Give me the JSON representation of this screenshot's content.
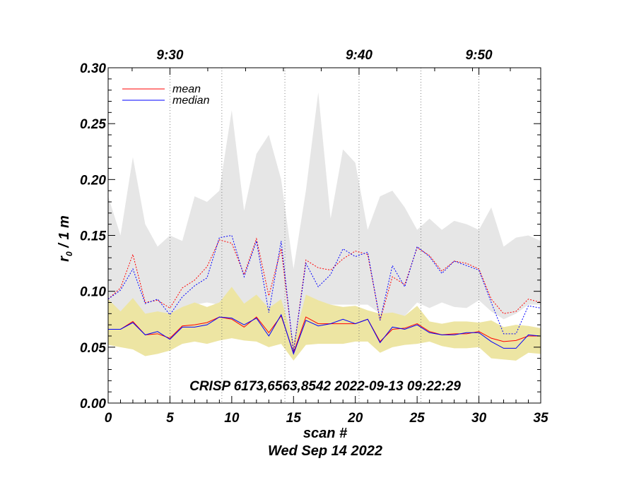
{
  "chart_data": {
    "type": "line",
    "xlabel": "scan #",
    "ylabel_main": "r",
    "ylabel_sub": "0",
    "ylabel_rest": " / 1 m",
    "date": "Wed Sep 14 2022",
    "caption": "CRISP 6173,6563,8542 2022-09-13 09:22:29",
    "xlim": [
      0,
      35
    ],
    "ylim": [
      0,
      0.3
    ],
    "x_ticks": [
      0,
      5,
      10,
      15,
      20,
      25,
      30,
      35
    ],
    "x_tick_labels": [
      "0",
      "5",
      "10",
      "15",
      "20",
      "25",
      "30",
      "35"
    ],
    "y_ticks": [
      0,
      0.05,
      0.1,
      0.15,
      0.2,
      0.25,
      0.3
    ],
    "y_tick_labels": [
      "0.00",
      "0.05",
      "0.10",
      "0.15",
      "0.20",
      "0.25",
      "0.30"
    ],
    "time_axis": {
      "ticks": [
        {
          "scan": 5,
          "label": "9:30"
        },
        {
          "scan": 20.3,
          "label": "9:40"
        },
        {
          "scan": 30,
          "label": "9:50"
        }
      ],
      "extra_gridlines": [
        9.2,
        14.3,
        25.3
      ]
    },
    "legend": {
      "placement": "top-left",
      "entries": [
        {
          "name": "mean",
          "color": "#ff0000"
        },
        {
          "name": "median",
          "color": "#0000ff"
        }
      ]
    },
    "x": [
      0,
      1,
      2,
      3,
      4,
      5,
      6,
      7,
      8,
      9,
      10,
      11,
      12,
      13,
      14,
      15,
      16,
      17,
      18,
      19,
      20,
      21,
      22,
      23,
      24,
      25,
      26,
      27,
      28,
      29,
      30,
      31,
      32,
      33,
      34,
      35
    ],
    "series": [
      {
        "name": "mean",
        "style": "solid",
        "color": "#ff0000",
        "values": [
          0.066,
          0.066,
          0.073,
          0.061,
          0.062,
          0.058,
          0.069,
          0.07,
          0.072,
          0.077,
          0.075,
          0.068,
          0.077,
          0.063,
          0.078,
          0.045,
          0.077,
          0.071,
          0.071,
          0.071,
          0.071,
          0.075,
          0.055,
          0.066,
          0.067,
          0.071,
          0.064,
          0.061,
          0.062,
          0.062,
          0.064,
          0.058,
          0.055,
          0.056,
          0.06,
          0.06
        ]
      },
      {
        "name": "median",
        "style": "solid",
        "color": "#0000ff",
        "values": [
          0.066,
          0.066,
          0.072,
          0.061,
          0.064,
          0.057,
          0.068,
          0.068,
          0.07,
          0.077,
          0.076,
          0.07,
          0.076,
          0.06,
          0.079,
          0.044,
          0.074,
          0.069,
          0.071,
          0.075,
          0.071,
          0.075,
          0.054,
          0.068,
          0.066,
          0.07,
          0.063,
          0.061,
          0.061,
          0.063,
          0.063,
          0.055,
          0.049,
          0.049,
          0.061,
          0.06
        ]
      },
      {
        "style": "dotted",
        "color": "#ff0000",
        "values": [
          0.093,
          0.103,
          0.133,
          0.09,
          0.092,
          0.085,
          0.103,
          0.11,
          0.122,
          0.146,
          0.143,
          0.115,
          0.147,
          0.096,
          0.138,
          0.046,
          0.128,
          0.121,
          0.119,
          0.129,
          0.136,
          0.133,
          0.074,
          0.113,
          0.106,
          0.139,
          0.132,
          0.118,
          0.127,
          0.125,
          0.12,
          0.093,
          0.08,
          0.082,
          0.093,
          0.09
        ]
      },
      {
        "style": "dotted",
        "color": "#0000ff",
        "values": [
          0.093,
          0.101,
          0.12,
          0.089,
          0.093,
          0.079,
          0.095,
          0.105,
          0.112,
          0.148,
          0.15,
          0.113,
          0.145,
          0.081,
          0.145,
          0.046,
          0.125,
          0.104,
          0.115,
          0.138,
          0.131,
          0.135,
          0.074,
          0.123,
          0.104,
          0.14,
          0.131,
          0.116,
          0.127,
          0.123,
          0.119,
          0.09,
          0.062,
          0.062,
          0.087,
          0.085
        ]
      }
    ],
    "bands": [
      {
        "color": "#e6e6e6",
        "upper": [
          0.185,
          0.15,
          0.22,
          0.16,
          0.14,
          0.15,
          0.145,
          0.185,
          0.18,
          0.19,
          0.262,
          0.172,
          0.223,
          0.24,
          0.2,
          0.12,
          0.19,
          0.278,
          0.165,
          0.227,
          0.215,
          0.155,
          0.185,
          0.19,
          0.175,
          0.155,
          0.165,
          0.155,
          0.163,
          0.16,
          0.155,
          0.175,
          0.14,
          0.148,
          0.15,
          0.145
        ],
        "lower": [
          0.085,
          0.078,
          0.085,
          0.078,
          0.08,
          0.073,
          0.085,
          0.088,
          0.09,
          0.088,
          0.09,
          0.088,
          0.092,
          0.085,
          0.088,
          0.045,
          0.088,
          0.088,
          0.088,
          0.088,
          0.088,
          0.088,
          0.08,
          0.08,
          0.078,
          0.09,
          0.085,
          0.09,
          0.086,
          0.085,
          0.092,
          0.082,
          0.075,
          0.08,
          0.088,
          0.088
        ]
      },
      {
        "color": "#ede5a3",
        "upper": [
          0.093,
          0.082,
          0.094,
          0.08,
          0.082,
          0.08,
          0.086,
          0.09,
          0.086,
          0.09,
          0.104,
          0.089,
          0.097,
          0.085,
          0.093,
          0.055,
          0.097,
          0.092,
          0.088,
          0.086,
          0.087,
          0.083,
          0.08,
          0.081,
          0.078,
          0.087,
          0.073,
          0.071,
          0.073,
          0.073,
          0.072,
          0.074,
          0.068,
          0.07,
          0.069,
          0.067
        ],
        "lower": [
          0.052,
          0.05,
          0.048,
          0.042,
          0.044,
          0.047,
          0.053,
          0.055,
          0.053,
          0.056,
          0.058,
          0.056,
          0.055,
          0.05,
          0.053,
          0.038,
          0.052,
          0.053,
          0.053,
          0.053,
          0.055,
          0.055,
          0.045,
          0.05,
          0.052,
          0.053,
          0.055,
          0.051,
          0.049,
          0.049,
          0.05,
          0.04,
          0.039,
          0.038,
          0.045,
          0.044
        ]
      }
    ]
  }
}
